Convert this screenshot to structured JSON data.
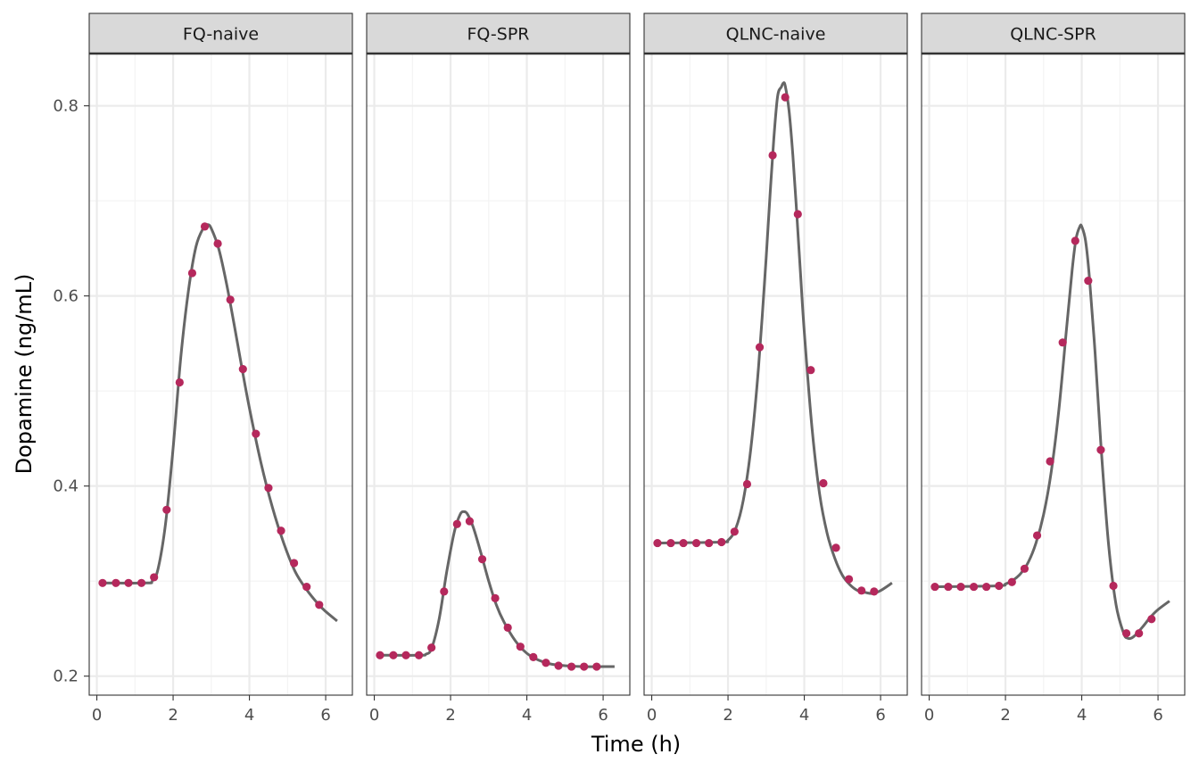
{
  "chart_data": {
    "type": "line",
    "xlabel": "Time (h)",
    "ylabel": "Dopamine (ng/mL)",
    "xlim": [
      -0.2,
      6.7
    ],
    "ylim": [
      0.18,
      0.855
    ],
    "x_ticks": [
      0,
      2,
      4,
      6
    ],
    "x_tick_labels": [
      "0",
      "2",
      "4",
      "6"
    ],
    "y_ticks": [
      0.2,
      0.4,
      0.6,
      0.8
    ],
    "y_tick_labels": [
      "0.2",
      "0.4",
      "0.6",
      "0.8"
    ],
    "grid": true,
    "colors": {
      "line": "#666666",
      "points": "#B5285C",
      "strip_fill": "#D9D9D9",
      "panel_border": "#333333",
      "grid_major": "#EBEBEB",
      "grid_minor": "#F3F3F3"
    },
    "panels": [
      {
        "name": "FQ-naive",
        "points": {
          "x": [
            0.15,
            0.5,
            0.83,
            1.17,
            1.5,
            1.83,
            2.17,
            2.5,
            2.83,
            3.17,
            3.5,
            3.83,
            4.17,
            4.5,
            4.83,
            5.17,
            5.5,
            5.83
          ],
          "y": [
            0.298,
            0.298,
            0.298,
            0.298,
            0.304,
            0.375,
            0.509,
            0.624,
            0.673,
            0.655,
            0.596,
            0.523,
            0.455,
            0.398,
            0.353,
            0.319,
            0.294,
            0.275
          ]
        },
        "curve": {
          "x": [
            0.1,
            1.3,
            1.45,
            1.6,
            1.8,
            2.0,
            2.2,
            2.4,
            2.6,
            2.8,
            2.9,
            3.0,
            3.2,
            3.4,
            3.6,
            3.8,
            4.0,
            4.3,
            4.6,
            4.9,
            5.2,
            5.5,
            5.8,
            6.0,
            6.3
          ],
          "y": [
            0.298,
            0.298,
            0.3,
            0.312,
            0.36,
            0.44,
            0.535,
            0.605,
            0.652,
            0.672,
            0.675,
            0.671,
            0.649,
            0.613,
            0.57,
            0.525,
            0.482,
            0.425,
            0.378,
            0.34,
            0.31,
            0.291,
            0.276,
            0.268,
            0.258
          ]
        }
      },
      {
        "name": "FQ-SPR",
        "points": {
          "x": [
            0.15,
            0.5,
            0.83,
            1.17,
            1.5,
            1.83,
            2.17,
            2.5,
            2.83,
            3.17,
            3.5,
            3.83,
            4.17,
            4.5,
            4.83,
            5.17,
            5.5,
            5.83
          ],
          "y": [
            0.222,
            0.222,
            0.222,
            0.222,
            0.23,
            0.289,
            0.36,
            0.363,
            0.323,
            0.282,
            0.251,
            0.231,
            0.22,
            0.214,
            0.211,
            0.21,
            0.21,
            0.21
          ]
        },
        "curve": {
          "x": [
            0.1,
            1.2,
            1.35,
            1.5,
            1.7,
            1.9,
            2.1,
            2.25,
            2.35,
            2.45,
            2.6,
            2.8,
            3.0,
            3.2,
            3.4,
            3.7,
            4.0,
            4.3,
            4.6,
            5.0,
            5.5,
            6.0,
            6.3
          ],
          "y": [
            0.222,
            0.222,
            0.223,
            0.229,
            0.26,
            0.31,
            0.352,
            0.37,
            0.373,
            0.37,
            0.356,
            0.329,
            0.3,
            0.275,
            0.257,
            0.237,
            0.224,
            0.217,
            0.213,
            0.211,
            0.21,
            0.21,
            0.21
          ]
        }
      },
      {
        "name": "QLNC-naive",
        "points": {
          "x": [
            0.15,
            0.5,
            0.83,
            1.17,
            1.5,
            1.83,
            2.17,
            2.5,
            2.83,
            3.17,
            3.5,
            3.83,
            4.17,
            4.5,
            4.83,
            5.17,
            5.5,
            5.83
          ],
          "y": [
            0.34,
            0.34,
            0.34,
            0.34,
            0.34,
            0.341,
            0.352,
            0.402,
            0.546,
            0.748,
            0.809,
            0.686,
            0.522,
            0.403,
            0.335,
            0.302,
            0.29,
            0.289
          ]
        },
        "curve": {
          "x": [
            0.1,
            1.8,
            2.0,
            2.2,
            2.4,
            2.6,
            2.8,
            3.0,
            3.1,
            3.2,
            3.3,
            3.4,
            3.45,
            3.5,
            3.6,
            3.7,
            3.8,
            3.9,
            4.0,
            4.2,
            4.4,
            4.6,
            4.8,
            5.0,
            5.2,
            5.4,
            5.6,
            5.8,
            6.0,
            6.3
          ],
          "y": [
            0.34,
            0.341,
            0.343,
            0.355,
            0.385,
            0.44,
            0.525,
            0.64,
            0.705,
            0.765,
            0.81,
            0.82,
            0.824,
            0.821,
            0.795,
            0.748,
            0.688,
            0.624,
            0.562,
            0.462,
            0.392,
            0.35,
            0.324,
            0.306,
            0.296,
            0.29,
            0.288,
            0.287,
            0.29,
            0.298
          ]
        }
      },
      {
        "name": "QLNC-SPR",
        "points": {
          "x": [
            0.15,
            0.5,
            0.83,
            1.17,
            1.5,
            1.83,
            2.17,
            2.5,
            2.83,
            3.17,
            3.5,
            3.83,
            4.17,
            4.5,
            4.83,
            5.17,
            5.5,
            5.83
          ],
          "y": [
            0.294,
            0.294,
            0.294,
            0.294,
            0.294,
            0.295,
            0.299,
            0.313,
            0.348,
            0.426,
            0.551,
            0.658,
            0.616,
            0.438,
            0.295,
            0.245,
            0.245,
            0.26
          ]
        },
        "curve": {
          "x": [
            0.1,
            1.8,
            2.0,
            2.2,
            2.4,
            2.6,
            2.8,
            3.0,
            3.2,
            3.4,
            3.6,
            3.75,
            3.85,
            3.95,
            4.0,
            4.1,
            4.2,
            4.35,
            4.5,
            4.7,
            4.9,
            5.1,
            5.2,
            5.3,
            5.4,
            5.6,
            5.8,
            6.0,
            6.3
          ],
          "y": [
            0.294,
            0.295,
            0.297,
            0.301,
            0.308,
            0.32,
            0.34,
            0.37,
            0.415,
            0.48,
            0.565,
            0.628,
            0.66,
            0.673,
            0.673,
            0.658,
            0.62,
            0.54,
            0.445,
            0.34,
            0.275,
            0.245,
            0.24,
            0.24,
            0.243,
            0.252,
            0.262,
            0.27,
            0.279
          ]
        }
      }
    ]
  }
}
